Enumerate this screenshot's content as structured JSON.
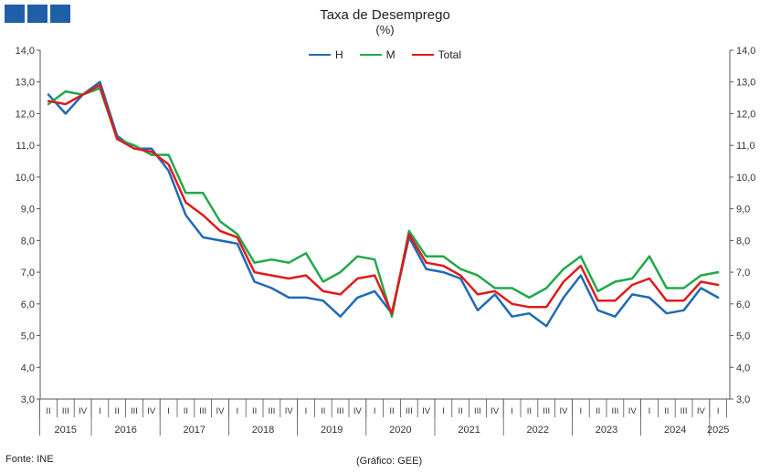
{
  "header": {
    "title": "Taxa de Desemprego",
    "subtitle": "(%)"
  },
  "footer": {
    "source": "Fonte: INE",
    "credit": "(Gráfico: GEE)"
  },
  "colors": {
    "H": "#1f6bb5",
    "M": "#22a84a",
    "Total": "#e01b1b",
    "axis": "#555555",
    "logo": "#1f5fa8"
  },
  "chart_data": {
    "type": "line",
    "title": "Taxa de Desemprego",
    "subtitle": "(%)",
    "ylim": [
      3.0,
      14.0
    ],
    "y_ticks": [
      "3,0",
      "4,0",
      "5,0",
      "6,0",
      "7,0",
      "8,0",
      "9,0",
      "10,0",
      "11,0",
      "12,0",
      "13,0",
      "14,0"
    ],
    "y_axis_both_sides": true,
    "grid": false,
    "legend": "top-center",
    "x_quarters": [
      "II",
      "III",
      "IV",
      "I",
      "II",
      "III",
      "IV",
      "I",
      "II",
      "III",
      "IV",
      "I",
      "II",
      "III",
      "IV",
      "I",
      "II",
      "III",
      "IV",
      "I",
      "II",
      "III",
      "IV",
      "I",
      "II",
      "III",
      "IV",
      "I",
      "II",
      "III",
      "IV",
      "I",
      "II",
      "III",
      "IV",
      "I",
      "II",
      "III",
      "IV",
      "I"
    ],
    "x_years": [
      {
        "label": "2015",
        "start": 0,
        "count": 3
      },
      {
        "label": "2016",
        "start": 3,
        "count": 4
      },
      {
        "label": "2017",
        "start": 7,
        "count": 4
      },
      {
        "label": "2018",
        "start": 11,
        "count": 4
      },
      {
        "label": "2019",
        "start": 15,
        "count": 4
      },
      {
        "label": "2020",
        "start": 19,
        "count": 4
      },
      {
        "label": "2021",
        "start": 23,
        "count": 4
      },
      {
        "label": "2022",
        "start": 27,
        "count": 4
      },
      {
        "label": "2023",
        "start": 31,
        "count": 4
      },
      {
        "label": "2024",
        "start": 35,
        "count": 4
      },
      {
        "label": "2025",
        "start": 39,
        "count": 1
      }
    ],
    "series": [
      {
        "name": "H",
        "values": [
          12.6,
          12.0,
          12.6,
          13.0,
          11.3,
          10.9,
          10.9,
          10.2,
          8.8,
          8.1,
          8.0,
          7.9,
          6.7,
          6.5,
          6.2,
          6.2,
          6.1,
          5.6,
          6.2,
          6.4,
          5.7,
          8.1,
          7.1,
          7.0,
          6.8,
          5.8,
          6.3,
          5.6,
          5.7,
          5.3,
          6.2,
          6.9,
          5.8,
          5.6,
          6.3,
          6.2,
          5.7,
          5.8,
          6.5,
          6.2
        ]
      },
      {
        "name": "M",
        "values": [
          12.3,
          12.7,
          12.6,
          12.8,
          11.2,
          11.0,
          10.7,
          10.7,
          9.5,
          9.5,
          8.6,
          8.2,
          7.3,
          7.4,
          7.3,
          7.6,
          6.7,
          7.0,
          7.5,
          7.4,
          5.6,
          8.3,
          7.5,
          7.5,
          7.1,
          6.9,
          6.5,
          6.5,
          6.2,
          6.5,
          7.1,
          7.5,
          6.4,
          6.7,
          6.8,
          7.5,
          6.5,
          6.5,
          6.9,
          7.0
        ]
      },
      {
        "name": "Total",
        "values": [
          12.4,
          12.3,
          12.6,
          12.9,
          11.2,
          10.9,
          10.8,
          10.4,
          9.2,
          8.8,
          8.3,
          8.1,
          7.0,
          6.9,
          6.8,
          6.9,
          6.4,
          6.3,
          6.8,
          6.9,
          5.7,
          8.2,
          7.3,
          7.2,
          6.9,
          6.3,
          6.4,
          6.0,
          5.9,
          5.9,
          6.7,
          7.2,
          6.1,
          6.1,
          6.6,
          6.8,
          6.1,
          6.1,
          6.7,
          6.6
        ]
      }
    ]
  }
}
